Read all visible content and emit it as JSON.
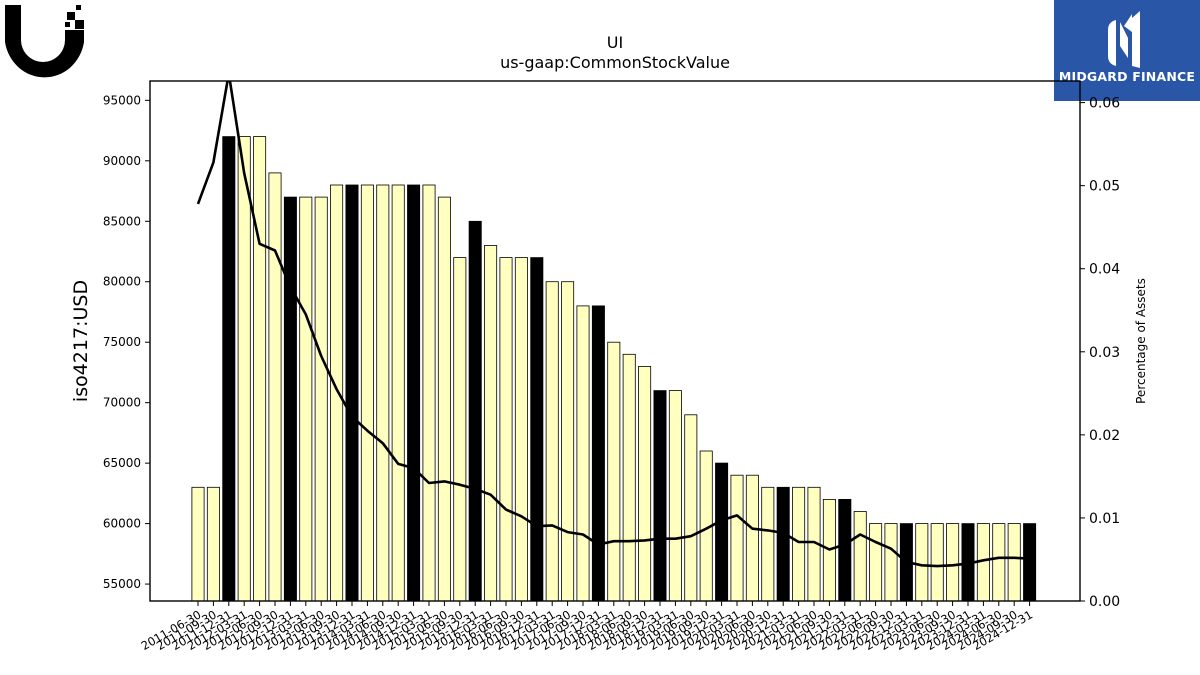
{
  "header": {
    "left_logo_icon": "ubiquiti-u-logo-icon",
    "right_logo_icon": "midgard-finance-logo-icon",
    "right_logo_text": "MIDGARD FINANCE"
  },
  "colors": {
    "bar_default": "#ffffc0",
    "bar_highlight": "#000000",
    "line": "#000000",
    "brand_blue": "#2a56a8"
  },
  "chart_data": {
    "type": "bar",
    "title": "UI",
    "subtitle": "us-gaap:CommonStockValue",
    "ylabel": "iso4217:USD",
    "y2label": "Percentage of Assets",
    "ylim": [
      53600,
      96600
    ],
    "y2lim": [
      0.0,
      0.0626
    ],
    "yticks": [
      55000,
      60000,
      65000,
      70000,
      75000,
      80000,
      85000,
      90000,
      95000
    ],
    "y2ticks": [
      "0.00",
      "0.01",
      "0.02",
      "0.03",
      "0.04",
      "0.05",
      "0.06"
    ],
    "legend": "none",
    "grid": false,
    "categories": [
      "2011-06-30",
      "2011-09-30",
      "2011-12-31",
      "2012-03-31",
      "2012-06-30",
      "2012-09-30",
      "2012-12-31",
      "2013-03-31",
      "2013-06-30",
      "2013-09-30",
      "2013-12-31",
      "2014-03-31",
      "2014-06-30",
      "2014-09-30",
      "2014-12-31",
      "2015-03-31",
      "2015-06-30",
      "2015-09-30",
      "2015-12-31",
      "2016-03-31",
      "2016-06-30",
      "2016-09-30",
      "2016-12-31",
      "2017-03-31",
      "2017-06-30",
      "2017-09-30",
      "2017-12-31",
      "2018-03-31",
      "2018-06-30",
      "2018-09-30",
      "2018-12-31",
      "2019-03-31",
      "2019-06-30",
      "2019-09-30",
      "2019-12-31",
      "2020-03-31",
      "2020-06-30",
      "2020-09-30",
      "2020-12-31",
      "2021-03-31",
      "2021-06-30",
      "2021-09-30",
      "2021-12-31",
      "2022-03-31",
      "2022-06-30",
      "2022-09-30",
      "2022-12-31",
      "2023-03-31",
      "2023-06-30",
      "2023-09-30",
      "2023-12-31",
      "2024-03-31",
      "2024-06-30",
      "2024-09-30",
      "2024-12-31"
    ],
    "series": [
      {
        "type": "bar",
        "values": [
          63000,
          63000,
          92000,
          92000,
          92000,
          89000,
          87000,
          87000,
          87000,
          88000,
          88000,
          88000,
          88000,
          88000,
          88000,
          88000,
          87000,
          82000,
          85000,
          83000,
          82000,
          82000,
          82000,
          80000,
          80000,
          78000,
          78000,
          75000,
          74000,
          73000,
          71000,
          71000,
          69000,
          66000,
          65000,
          64000,
          64000,
          63000,
          63000,
          63000,
          63000,
          62000,
          62000,
          61000,
          60000,
          60000,
          60000,
          60000,
          60000,
          60000,
          60000,
          60000,
          60000,
          60000,
          60000
        ],
        "highlight": [
          false,
          false,
          true,
          false,
          false,
          false,
          true,
          false,
          false,
          false,
          true,
          false,
          false,
          false,
          true,
          false,
          false,
          false,
          true,
          false,
          false,
          false,
          true,
          false,
          false,
          false,
          true,
          false,
          false,
          false,
          true,
          false,
          false,
          false,
          true,
          false,
          false,
          false,
          true,
          false,
          false,
          false,
          true,
          false,
          false,
          false,
          true,
          false,
          false,
          false,
          true,
          false,
          false,
          false,
          true
        ]
      },
      {
        "type": "line",
        "axis": "right",
        "values": [
          0.0478,
          0.0528,
          0.0635,
          0.0515,
          0.043,
          0.0422,
          0.0378,
          0.0345,
          0.0295,
          0.0255,
          0.0222,
          0.0205,
          0.019,
          0.0165,
          0.016,
          0.0142,
          0.0144,
          0.014,
          0.0135,
          0.0128,
          0.011,
          0.0102,
          0.009,
          0.0091,
          0.0083,
          0.008,
          0.0068,
          0.0072,
          0.0072,
          0.0073,
          0.0075,
          0.0075,
          0.0078,
          0.0087,
          0.0097,
          0.0103,
          0.0087,
          0.0085,
          0.0082,
          0.0071,
          0.0071,
          0.0062,
          0.0068,
          0.008,
          0.0071,
          0.0063,
          0.0047,
          0.0043,
          0.0042,
          0.0043,
          0.0045,
          0.0049,
          0.0052,
          0.0052,
          0.0051
        ]
      }
    ]
  }
}
